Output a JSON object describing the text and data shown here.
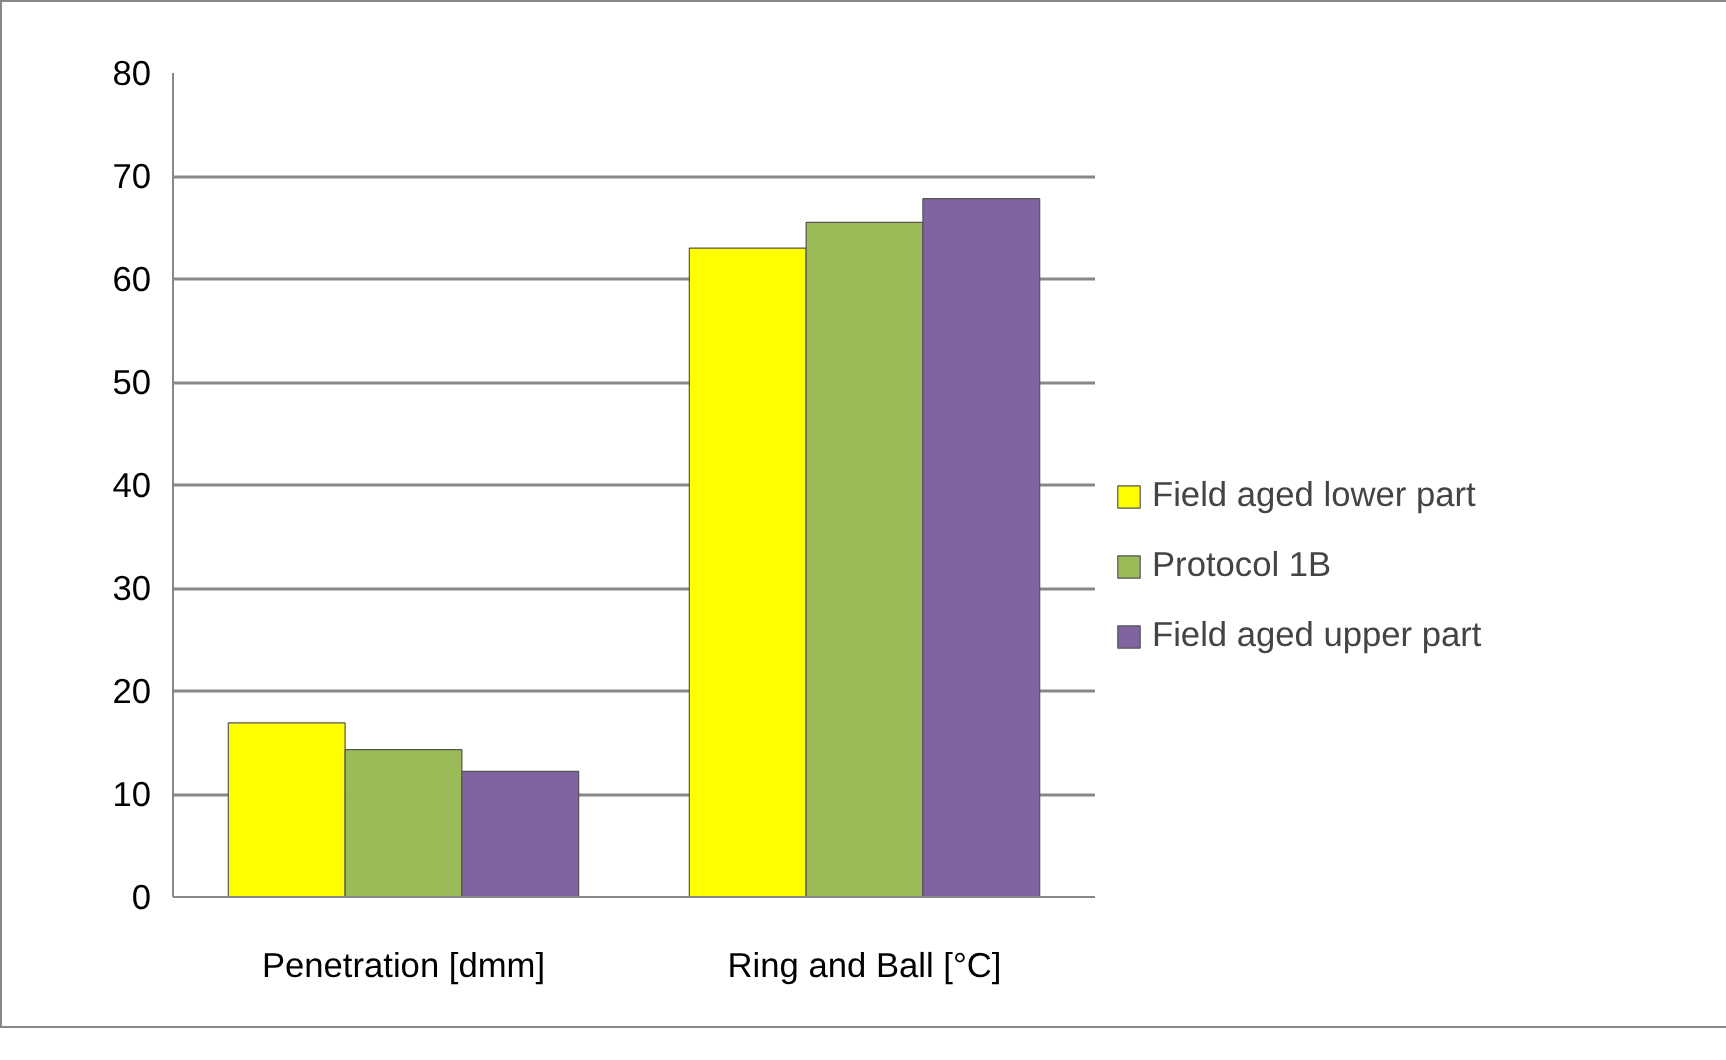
{
  "chart_data": {
    "type": "bar",
    "categories": [
      "Penetration [dmm]",
      "Ring and Ball [°C]"
    ],
    "series": [
      {
        "name": "Field aged lower part",
        "color": "#ffff00",
        "values": [
          16.9,
          63.0
        ]
      },
      {
        "name": "Protocol 1B",
        "color": "#9bbb59",
        "values": [
          14.3,
          65.5
        ]
      },
      {
        "name": "Field aged upper part",
        "color": "#8064a2",
        "values": [
          12.2,
          67.8
        ]
      }
    ],
    "ylim": [
      0,
      80
    ],
    "yticks": [
      0,
      10,
      20,
      30,
      40,
      50,
      60,
      70,
      80
    ],
    "grid": "y",
    "legend": "right"
  }
}
